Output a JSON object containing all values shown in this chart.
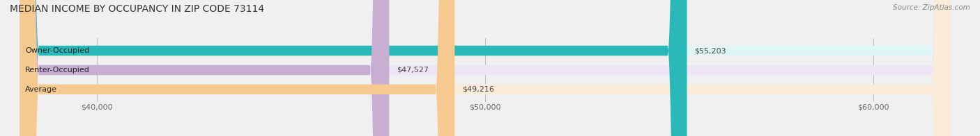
{
  "title": "MEDIAN INCOME BY OCCUPANCY IN ZIP CODE 73114",
  "source": "Source: ZipAtlas.com",
  "categories": [
    "Owner-Occupied",
    "Renter-Occupied",
    "Average"
  ],
  "values": [
    55203,
    47527,
    49216
  ],
  "bar_colors": [
    "#2ab8b8",
    "#c9aed4",
    "#f5c990"
  ],
  "bar_bg_colors": [
    "#e0f5f5",
    "#ede5f5",
    "#faecd8"
  ],
  "value_labels": [
    "$55,203",
    "$47,527",
    "$49,216"
  ],
  "xlim": [
    38000,
    62000
  ],
  "xticks": [
    40000,
    50000,
    60000
  ],
  "xtick_labels": [
    "$40,000",
    "$50,000",
    "$60,000"
  ],
  "background_color": "#f0f0f0",
  "bar_height": 0.52,
  "title_fontsize": 10,
  "label_fontsize": 8,
  "tick_fontsize": 8,
  "source_fontsize": 7.5
}
